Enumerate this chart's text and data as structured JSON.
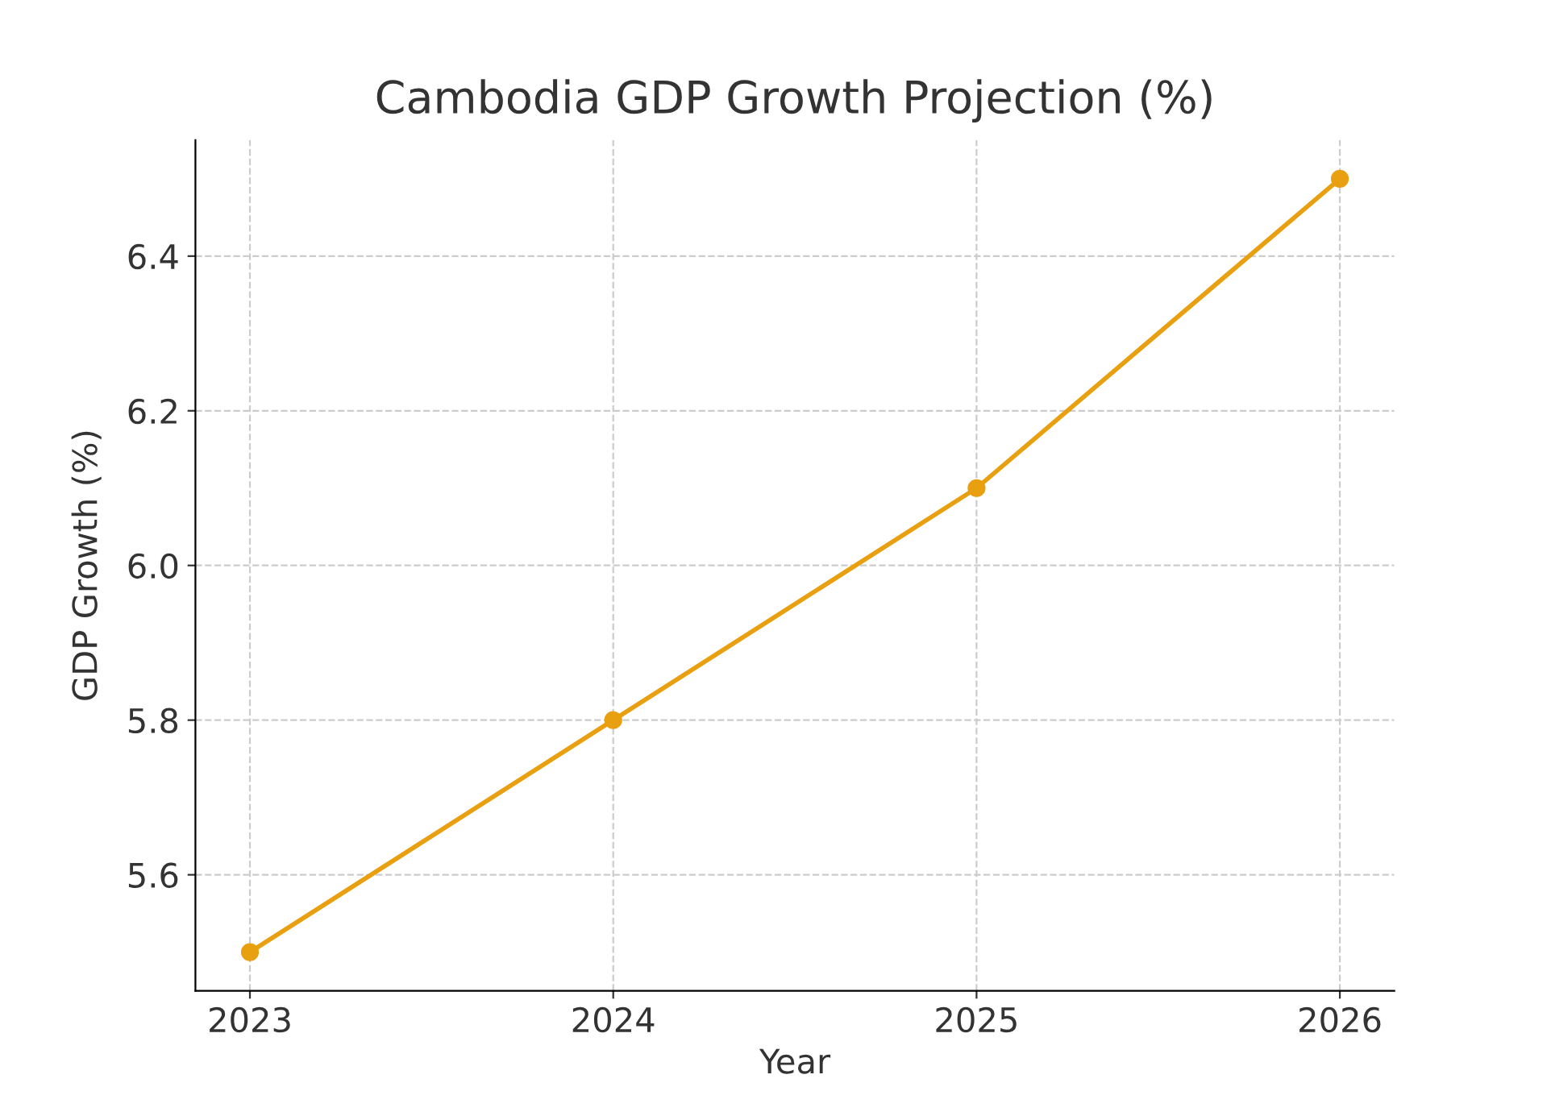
{
  "chart_data": {
    "type": "line",
    "title": "Cambodia GDP Growth Projection (%)",
    "xlabel": "Year",
    "ylabel": "GDP Growth (%)",
    "x": [
      2023,
      2024,
      2025,
      2026
    ],
    "series": [
      {
        "color": "#e8a010",
        "values": [
          5.5,
          5.8,
          6.1,
          6.5
        ]
      }
    ],
    "xlim": [
      2022.85,
      2026.15
    ],
    "xticks": [
      2023,
      2024,
      2025,
      2026
    ],
    "ylim": [
      5.45,
      6.55
    ],
    "yticks": [
      5.6,
      5.8,
      {
        "value": 6.0,
        "label": "6.0"
      },
      6.2,
      6.4
    ],
    "grid": true,
    "marker": "circle",
    "line_style": "solid"
  }
}
